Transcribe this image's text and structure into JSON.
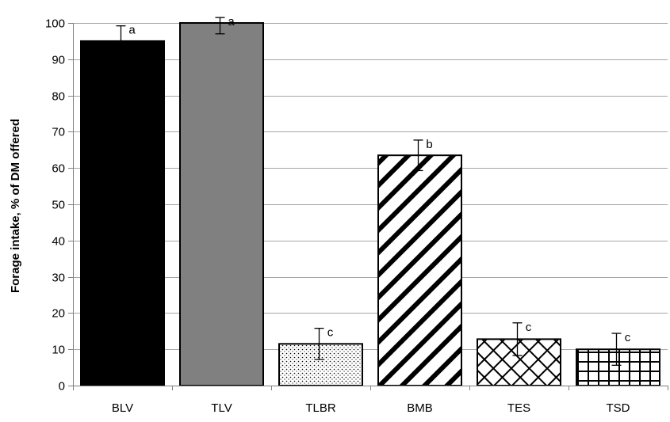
{
  "chart_data": {
    "type": "bar",
    "title": "",
    "xlabel": "",
    "ylabel": "Forage intake, % of DM offered",
    "ylim": [
      0,
      100
    ],
    "yticks": [
      0,
      10,
      20,
      30,
      40,
      50,
      60,
      70,
      80,
      90,
      100
    ],
    "ytick_labels": [
      "0",
      "10",
      "20",
      "30",
      "40",
      "50",
      "60",
      "70",
      "80",
      "90",
      "100"
    ],
    "grid": true,
    "categories": [
      "BLV",
      "TLV",
      "TLBR",
      "BMB",
      "TES",
      "TSD"
    ],
    "values": [
      95,
      100,
      11.5,
      63.5,
      12.8,
      10
    ],
    "errors": [
      4.2,
      3,
      4.3,
      4.2,
      4.5,
      4.4
    ],
    "significance": [
      "a",
      "a",
      "c",
      "b",
      "c",
      "c"
    ],
    "fills": [
      {
        "pattern": "solid",
        "color": "#000000"
      },
      {
        "pattern": "solid",
        "color": "#808080"
      },
      {
        "pattern": "dots",
        "color": "#000000"
      },
      {
        "pattern": "wide-diagonal",
        "color": "#000000"
      },
      {
        "pattern": "diagonal-cross",
        "color": "#000000"
      },
      {
        "pattern": "grid",
        "color": "#000000"
      }
    ]
  }
}
